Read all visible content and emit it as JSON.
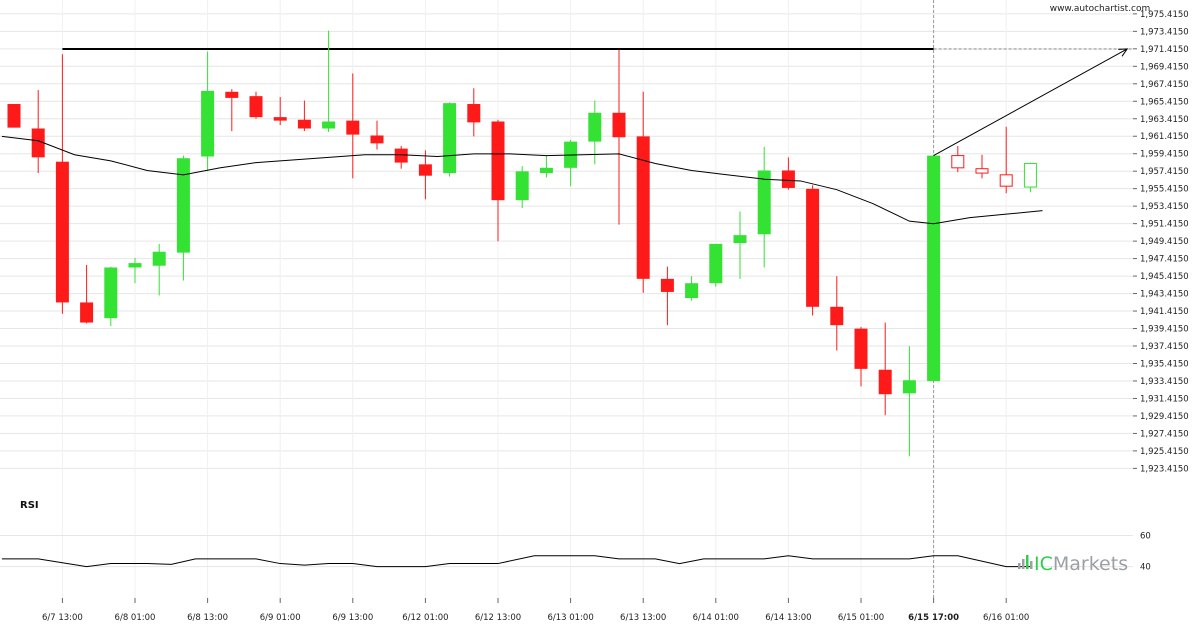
{
  "branding": {
    "site": "www.autochartist.com",
    "broker_prefix": "IC",
    "broker_suffix": "Markets"
  },
  "colors": {
    "up": "#33e233",
    "down": "#ff1a1a",
    "ma": "#000000",
    "resistance": "#000000",
    "grid": "#e6e6e6",
    "logo_grey": "#9aa0a6",
    "logo_green": "#2fcf4a"
  },
  "chart_data": [
    {
      "type": "candlestick",
      "y_tick_labels": [
        "1,975.4150",
        "1,973.4150",
        "1,971.4150",
        "1,969.4150",
        "1,967.4150",
        "1,965.4150",
        "1,963.4150",
        "1,961.4150",
        "1,959.4150",
        "1,957.4150",
        "1,955.4150",
        "1,953.4150",
        "1,951.4150",
        "1,949.4150",
        "1,947.4150",
        "1,945.4150",
        "1,943.4150",
        "1,941.4150",
        "1,939.4150",
        "1,937.4150",
        "1,935.4150",
        "1,933.4150",
        "1,931.4150",
        "1,929.4150",
        "1,927.4150",
        "1,925.4150",
        "1,923.4150"
      ],
      "ylim": [
        1922.2,
        1976.2
      ],
      "x_tick_labels": [
        {
          "label": "6/7 13:00",
          "index": 2
        },
        {
          "label": "6/8 01:00",
          "index": 5
        },
        {
          "label": "6/8 13:00",
          "index": 8
        },
        {
          "label": "6/9 01:00",
          "index": 11
        },
        {
          "label": "6/9 13:00",
          "index": 14
        },
        {
          "label": "6/12 01:00",
          "index": 17
        },
        {
          "label": "6/12 13:00",
          "index": 20
        },
        {
          "label": "6/13 01:00",
          "index": 23
        },
        {
          "label": "6/13 13:00",
          "index": 26
        },
        {
          "label": "6/14 01:00",
          "index": 29
        },
        {
          "label": "6/14 13:00",
          "index": 32
        },
        {
          "label": "6/15 01:00",
          "index": 35
        },
        {
          "label": "6/15 17:00",
          "index": 38,
          "bold": true
        },
        {
          "label": "6/16 01:00",
          "index": 41
        }
      ],
      "candles": [
        {
          "o": 1965.1,
          "h": 1965.1,
          "l": 1962.4,
          "c": 1962.4
        },
        {
          "o": 1962.3,
          "h": 1966.7,
          "l": 1957.2,
          "c": 1959.0
        },
        {
          "o": 1958.5,
          "h": 1970.8,
          "l": 1941.1,
          "c": 1942.4
        },
        {
          "o": 1942.4,
          "h": 1946.7,
          "l": 1940.0,
          "c": 1940.1
        },
        {
          "o": 1940.6,
          "h": 1946.5,
          "l": 1939.7,
          "c": 1946.4
        },
        {
          "o": 1946.4,
          "h": 1947.5,
          "l": 1944.6,
          "c": 1946.9
        },
        {
          "o": 1946.6,
          "h": 1949.1,
          "l": 1943.2,
          "c": 1948.2
        },
        {
          "o": 1948.1,
          "h": 1959.2,
          "l": 1944.9,
          "c": 1958.9
        },
        {
          "o": 1959.1,
          "h": 1971.1,
          "l": 1957.4,
          "c": 1966.6
        },
        {
          "o": 1966.5,
          "h": 1966.8,
          "l": 1962.0,
          "c": 1965.8
        },
        {
          "o": 1966.0,
          "h": 1966.5,
          "l": 1963.4,
          "c": 1963.6
        },
        {
          "o": 1963.6,
          "h": 1965.9,
          "l": 1962.7,
          "c": 1963.2
        },
        {
          "o": 1963.3,
          "h": 1965.5,
          "l": 1962.0,
          "c": 1962.3
        },
        {
          "o": 1962.3,
          "h": 1973.5,
          "l": 1961.9,
          "c": 1963.1
        },
        {
          "o": 1963.2,
          "h": 1968.6,
          "l": 1956.6,
          "c": 1961.6
        },
        {
          "o": 1961.5,
          "h": 1963.2,
          "l": 1959.9,
          "c": 1960.6
        },
        {
          "o": 1960.0,
          "h": 1960.3,
          "l": 1957.7,
          "c": 1958.4
        },
        {
          "o": 1958.2,
          "h": 1959.8,
          "l": 1954.2,
          "c": 1956.9
        },
        {
          "o": 1957.2,
          "h": 1965.3,
          "l": 1956.8,
          "c": 1965.2
        },
        {
          "o": 1965.1,
          "h": 1966.9,
          "l": 1961.4,
          "c": 1963.0
        },
        {
          "o": 1963.1,
          "h": 1963.3,
          "l": 1949.4,
          "c": 1954.1
        },
        {
          "o": 1954.1,
          "h": 1958.0,
          "l": 1953.2,
          "c": 1957.4
        },
        {
          "o": 1957.2,
          "h": 1959.2,
          "l": 1956.7,
          "c": 1957.8
        },
        {
          "o": 1957.8,
          "h": 1961.0,
          "l": 1955.7,
          "c": 1960.8
        },
        {
          "o": 1960.8,
          "h": 1965.5,
          "l": 1958.2,
          "c": 1964.1
        },
        {
          "o": 1964.1,
          "h": 1971.3,
          "l": 1951.3,
          "c": 1961.3
        },
        {
          "o": 1961.4,
          "h": 1966.5,
          "l": 1943.5,
          "c": 1945.1
        },
        {
          "o": 1945.1,
          "h": 1946.5,
          "l": 1939.8,
          "c": 1943.6
        },
        {
          "o": 1942.9,
          "h": 1945.4,
          "l": 1942.6,
          "c": 1944.6
        },
        {
          "o": 1944.6,
          "h": 1949.1,
          "l": 1944.2,
          "c": 1949.1
        },
        {
          "o": 1949.2,
          "h": 1952.8,
          "l": 1945.1,
          "c": 1950.1
        },
        {
          "o": 1950.2,
          "h": 1960.2,
          "l": 1946.4,
          "c": 1957.5
        },
        {
          "o": 1957.5,
          "h": 1959.0,
          "l": 1955.3,
          "c": 1955.5
        },
        {
          "o": 1955.4,
          "h": 1955.8,
          "l": 1940.9,
          "c": 1941.9
        },
        {
          "o": 1941.9,
          "h": 1945.4,
          "l": 1936.9,
          "c": 1939.8
        },
        {
          "o": 1939.4,
          "h": 1939.6,
          "l": 1932.8,
          "c": 1934.8
        },
        {
          "o": 1934.7,
          "h": 1940.1,
          "l": 1929.5,
          "c": 1931.9
        },
        {
          "o": 1932.0,
          "h": 1937.4,
          "l": 1924.8,
          "c": 1933.5
        },
        {
          "o": 1933.4,
          "h": 1959.3,
          "l": 1933.4,
          "c": 1959.2
        },
        {
          "o": 1959.2,
          "h": 1960.3,
          "l": 1957.3,
          "c": 1957.8,
          "hollow": true
        },
        {
          "o": 1957.7,
          "h": 1959.3,
          "l": 1956.6,
          "c": 1957.2,
          "hollow": true
        },
        {
          "o": 1957.0,
          "h": 1962.5,
          "l": 1954.9,
          "c": 1955.7,
          "hollow": true
        },
        {
          "o": 1955.6,
          "h": 1958.4,
          "l": 1955.0,
          "c": 1958.3,
          "hollow": true
        }
      ],
      "moving_average": [
        {
          "i": -0.5,
          "v": 1961.4
        },
        {
          "i": 1,
          "v": 1960.9
        },
        {
          "i": 2.5,
          "v": 1959.3
        },
        {
          "i": 4,
          "v": 1958.6
        },
        {
          "i": 5.5,
          "v": 1957.5
        },
        {
          "i": 7,
          "v": 1957.0
        },
        {
          "i": 8.5,
          "v": 1957.8
        },
        {
          "i": 10,
          "v": 1958.4
        },
        {
          "i": 11.5,
          "v": 1958.7
        },
        {
          "i": 13,
          "v": 1959.0
        },
        {
          "i": 14.5,
          "v": 1959.3
        },
        {
          "i": 16,
          "v": 1959.3
        },
        {
          "i": 17.5,
          "v": 1959.1
        },
        {
          "i": 19,
          "v": 1959.4
        },
        {
          "i": 20.5,
          "v": 1959.4
        },
        {
          "i": 22,
          "v": 1959.2
        },
        {
          "i": 23.5,
          "v": 1959.3
        },
        {
          "i": 25,
          "v": 1959.4
        },
        {
          "i": 26.5,
          "v": 1958.3
        },
        {
          "i": 28,
          "v": 1957.5
        },
        {
          "i": 29.5,
          "v": 1957.0
        },
        {
          "i": 31,
          "v": 1956.5
        },
        {
          "i": 32.5,
          "v": 1956.3
        },
        {
          "i": 34,
          "v": 1955.3
        },
        {
          "i": 35.5,
          "v": 1953.7
        },
        {
          "i": 37,
          "v": 1951.7
        },
        {
          "i": 38,
          "v": 1951.4
        },
        {
          "i": 39.5,
          "v": 1952.1
        },
        {
          "i": 41,
          "v": 1952.5
        },
        {
          "i": 42.5,
          "v": 1952.9
        }
      ],
      "resistance_level": 1971.4,
      "resistance_start_index": 2,
      "forecast_arrow": [
        {
          "i": 38,
          "v": 1959.2
        },
        {
          "i": 46,
          "v": 1971.4
        }
      ],
      "current_marker_index": 38
    },
    {
      "type": "line",
      "title": "RSI",
      "y_tick_labels": [
        "60",
        "40"
      ],
      "ylim": [
        25,
        70
      ],
      "values": [
        {
          "i": -0.5,
          "v": 45
        },
        {
          "i": 1,
          "v": 45
        },
        {
          "i": 3,
          "v": 40
        },
        {
          "i": 4,
          "v": 42
        },
        {
          "i": 5.5,
          "v": 42
        },
        {
          "i": 6.5,
          "v": 41.5
        },
        {
          "i": 7.5,
          "v": 45
        },
        {
          "i": 10,
          "v": 45
        },
        {
          "i": 11,
          "v": 42
        },
        {
          "i": 12,
          "v": 41
        },
        {
          "i": 13,
          "v": 42
        },
        {
          "i": 14,
          "v": 42
        },
        {
          "i": 15,
          "v": 40
        },
        {
          "i": 17,
          "v": 40
        },
        {
          "i": 18,
          "v": 42
        },
        {
          "i": 20,
          "v": 42
        },
        {
          "i": 21.5,
          "v": 47
        },
        {
          "i": 24,
          "v": 47
        },
        {
          "i": 25,
          "v": 45
        },
        {
          "i": 26.5,
          "v": 45
        },
        {
          "i": 27.5,
          "v": 42
        },
        {
          "i": 28.5,
          "v": 45
        },
        {
          "i": 31,
          "v": 45
        },
        {
          "i": 32,
          "v": 47
        },
        {
          "i": 33,
          "v": 45
        },
        {
          "i": 37,
          "v": 45
        },
        {
          "i": 38,
          "v": 47
        },
        {
          "i": 39,
          "v": 47
        },
        {
          "i": 41,
          "v": 40
        },
        {
          "i": 42,
          "v": 40
        }
      ]
    }
  ]
}
